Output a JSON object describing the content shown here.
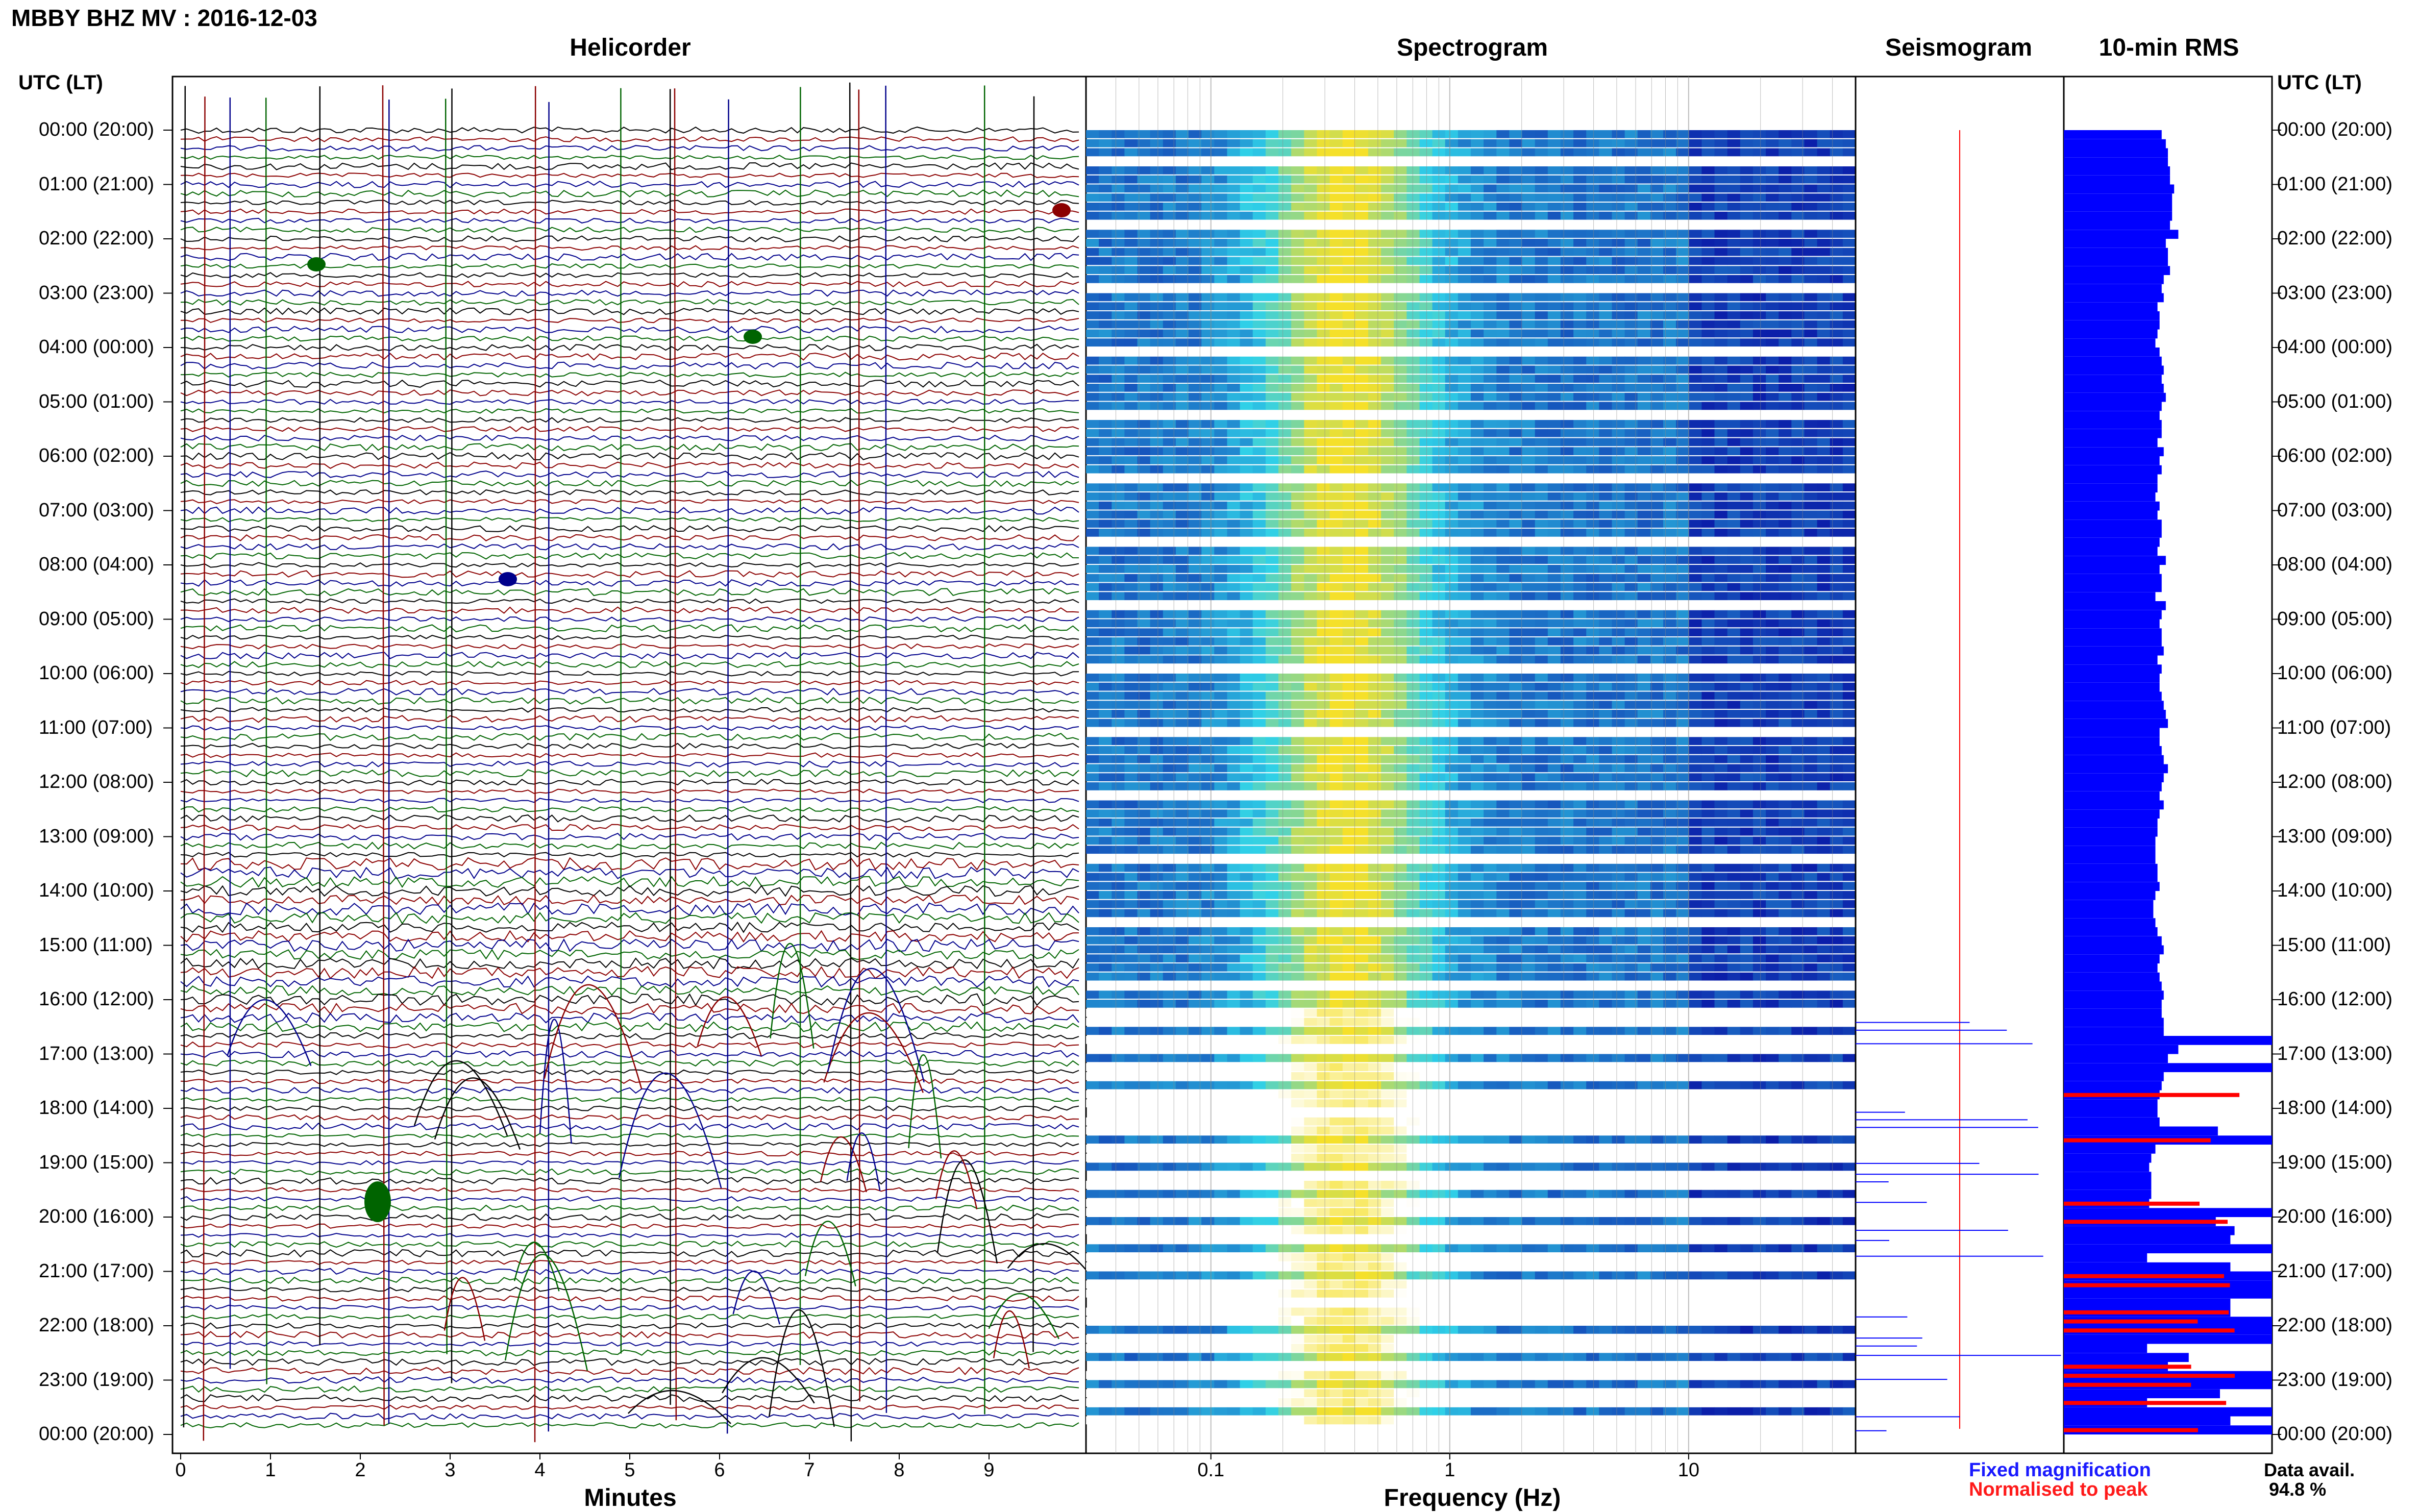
{
  "header": {
    "title": "MBBY BHZ MV : 2016-12-03"
  },
  "panels": {
    "helicorder": "Helicorder",
    "spectrogram": "Spectrogram",
    "seismogram": "Seismogram",
    "rms": "10-min RMS"
  },
  "axes": {
    "left_head": "UTC (LT)",
    "right_head": "UTC (LT)",
    "minutes_label": "Minutes",
    "frequency_label": "Frequency (Hz)",
    "minute_ticks": [
      "0",
      "1",
      "2",
      "3",
      "4",
      "5",
      "6",
      "7",
      "8",
      "9"
    ],
    "frequency_ticks": [
      "0.1",
      "1",
      "10"
    ]
  },
  "legend": {
    "fixed": "Fixed magnification",
    "normalised": "Normalised to peak",
    "availability_label": "Data avail.",
    "availability_value": "94.8 %"
  },
  "colors": {
    "trace_black": "#000000",
    "trace_red": "#8b0000",
    "trace_blue": "#00008b",
    "trace_green": "#006400",
    "rms_fixed": "#0000ff",
    "rms_normalised": "#ff0000",
    "spectrogram_low": "#0a1aa8",
    "spectrogram_mid": "#2fd0e8",
    "spectrogram_high": "#f5e02a"
  },
  "chart_data": {
    "type": "heatmap",
    "station": "MBBY BHZ MV",
    "date": "2016-12-03",
    "time_labels": [
      "00:00 (20:00)",
      "01:00 (21:00)",
      "02:00 (22:00)",
      "03:00 (23:00)",
      "04:00 (00:00)",
      "05:00 (01:00)",
      "06:00 (02:00)",
      "07:00 (03:00)",
      "08:00 (04:00)",
      "09:00 (05:00)",
      "10:00 (06:00)",
      "11:00 (07:00)",
      "12:00 (08:00)",
      "13:00 (09:00)",
      "14:00 (10:00)",
      "15:00 (11:00)",
      "16:00 (12:00)",
      "17:00 (13:00)",
      "18:00 (14:00)",
      "19:00 (15:00)",
      "20:00 (16:00)",
      "21:00 (17:00)",
      "22:00 (18:00)",
      "23:00 (19:00)",
      "00:00 (20:00)"
    ],
    "helicorder": {
      "xlabel": "Minutes",
      "xlim": [
        0,
        10
      ],
      "rows_per_hour": 6
    },
    "spectrogram": {
      "xlabel": "Frequency (Hz)",
      "xscale": "log",
      "xlim": [
        0.03,
        50
      ],
      "peak_band_hz": [
        0.2,
        0.6
      ]
    },
    "rms": {
      "title": "10-min RMS",
      "relative_values": [
        0.47,
        0.49,
        0.5,
        0.5,
        0.51,
        0.51,
        0.53,
        0.52,
        0.52,
        0.52,
        0.51,
        0.55,
        0.49,
        0.5,
        0.5,
        0.51,
        0.48,
        0.47,
        0.48,
        0.45,
        0.46,
        0.46,
        0.45,
        0.44,
        0.46,
        0.47,
        0.48,
        0.47,
        0.48,
        0.49,
        0.47,
        0.46,
        0.47,
        0.47,
        0.45,
        0.48,
        0.46,
        0.47,
        0.45,
        0.45,
        0.44,
        0.46,
        0.45,
        0.47,
        0.47,
        0.46,
        0.45,
        0.49,
        0.46,
        0.47,
        0.47,
        0.44,
        0.49,
        0.47,
        0.46,
        0.47,
        0.47,
        0.48,
        0.45,
        0.47,
        0.46,
        0.46,
        0.47,
        0.48,
        0.49,
        0.5,
        0.46,
        0.46,
        0.47,
        0.48,
        0.5,
        0.48,
        0.47,
        0.46,
        0.48,
        0.46,
        0.45,
        0.45,
        0.44,
        0.44,
        0.44,
        0.45,
        0.45,
        0.46,
        0.44,
        0.43,
        0.43,
        0.44,
        0.45,
        0.47,
        0.48,
        0.46,
        0.45,
        0.46,
        0.47,
        0.48,
        0.47,
        0.47,
        0.48,
        0.48,
        1.0,
        0.55,
        0.5,
        1.0,
        0.48,
        0.47,
        0.46,
        0.45,
        0.45,
        0.46,
        0.74,
        1.0,
        0.44,
        0.42,
        0.41,
        0.42,
        0.42,
        0.42,
        0.41,
        1.0,
        0.73,
        0.82,
        0.8,
        1.0,
        0.4,
        0.8,
        1.0,
        1.0,
        1.0,
        0.8,
        0.8,
        1.0,
        1.0,
        1.0,
        0.4,
        0.6,
        0.5,
        1.0,
        1.0,
        0.75,
        0.4,
        1.0,
        0.8,
        1.0
      ],
      "normalised_rows": [
        106,
        111,
        118,
        120,
        126,
        127,
        130,
        131,
        132,
        136,
        137,
        138,
        140,
        143
      ]
    }
  }
}
